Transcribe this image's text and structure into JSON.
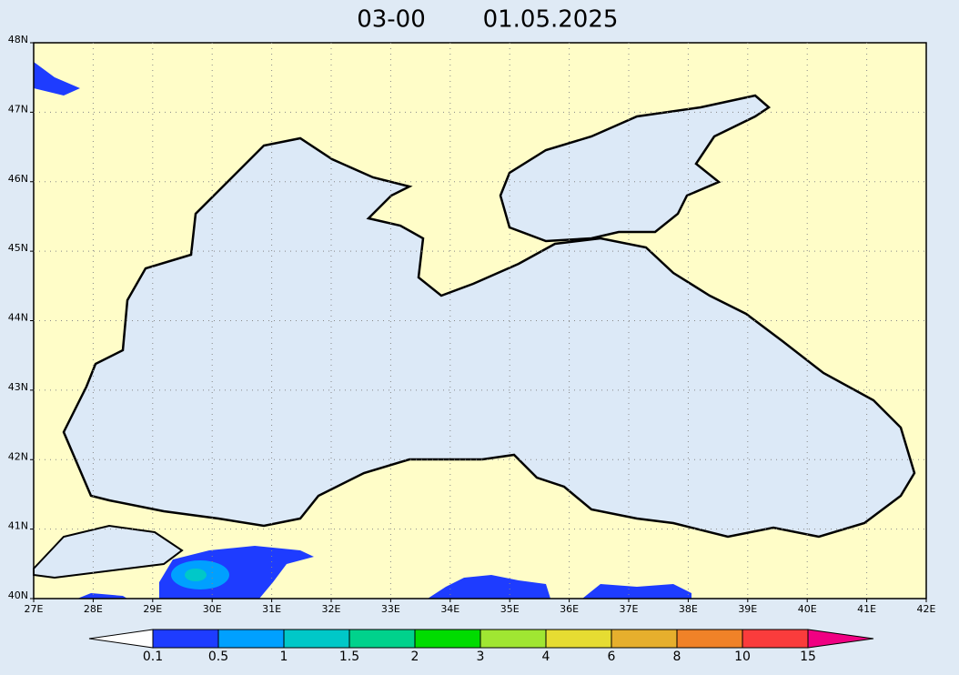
{
  "title": {
    "time": "03-00",
    "date": "01.05.2025"
  },
  "map": {
    "lat_labels": [
      "40N",
      "41N",
      "42N",
      "43N",
      "44N",
      "45N",
      "46N",
      "47N",
      "48N"
    ],
    "lon_labels": [
      "27E",
      "28E",
      "29E",
      "30E",
      "31E",
      "32E",
      "33E",
      "34E",
      "35E",
      "36E",
      "37E",
      "38E",
      "39E",
      "40E",
      "41E",
      "42E"
    ]
  },
  "colorbar": {
    "labels": [
      "0.1",
      "0.5",
      "1",
      "1.5",
      "2",
      "3",
      "4",
      "6",
      "8",
      "10",
      "15"
    ],
    "colors": [
      "#1e3cff",
      "#00a0ff",
      "#00c8c8",
      "#00d28c",
      "#00dc00",
      "#a0e632",
      "#e6dc32",
      "#e6af2d",
      "#f08228",
      "#fa3c3c"
    ],
    "low_color": "#ffffff",
    "high_color": "#f00082"
  }
}
